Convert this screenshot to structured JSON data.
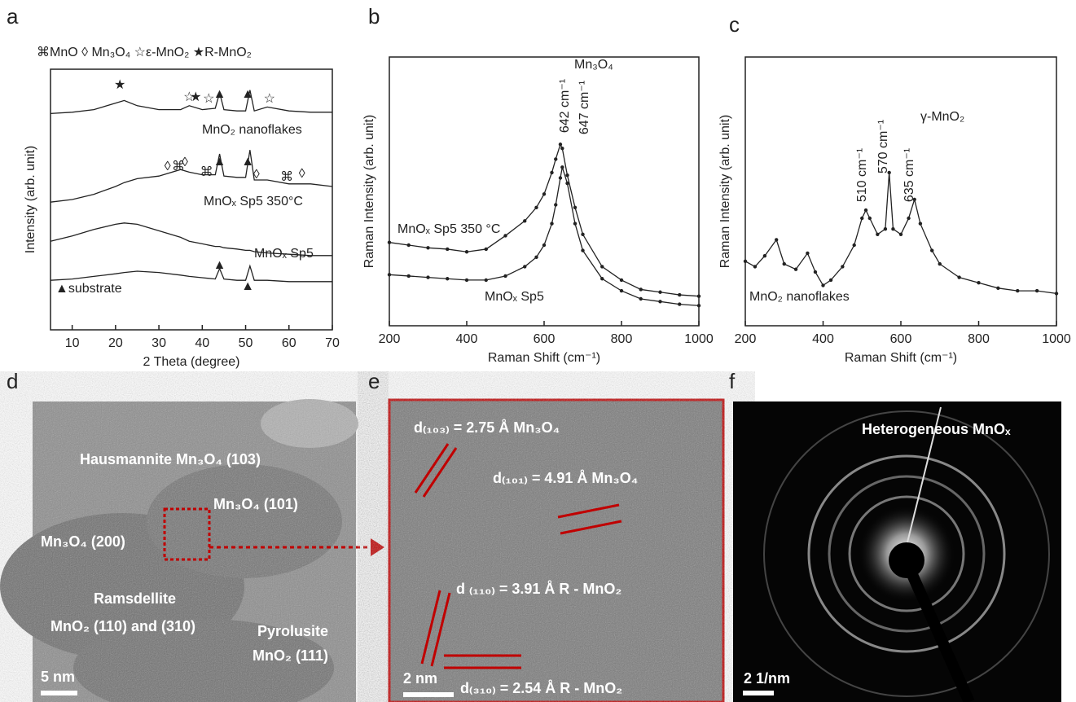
{
  "chart_data": [
    {
      "type": "line",
      "label": "a",
      "xlabel": "2 Theta (degree)",
      "ylabel": "Intensity (arb. unit)",
      "legend_text": "⌘MnO  ◊ Mn₃O₄  ☆ε-MnO₂  ★R-MnO₂",
      "xlim": [
        5,
        70
      ],
      "xticks": [
        10,
        20,
        30,
        40,
        50,
        60,
        70
      ],
      "ylim": [
        0,
        10
      ],
      "markers": false,
      "x": [
        5,
        10,
        15,
        20,
        22,
        25,
        30,
        35,
        37,
        40,
        43,
        44,
        45,
        48,
        50,
        51,
        52,
        55,
        60,
        65,
        70
      ],
      "series": [
        {
          "name": "MnO₂ nanoflakes",
          "color": "#222222",
          "values": [
            8.3,
            8.35,
            8.45,
            8.7,
            8.8,
            8.6,
            8.45,
            8.45,
            8.6,
            8.45,
            8.5,
            9.1,
            8.45,
            8.4,
            8.4,
            9.2,
            8.4,
            8.55,
            8.4,
            8.35,
            8.35
          ]
        },
        {
          "name": "MnOₓ Sp5 350°C",
          "color": "#222222",
          "values": [
            4.9,
            5.0,
            5.2,
            5.5,
            5.65,
            5.8,
            5.9,
            6.15,
            6.05,
            5.95,
            5.95,
            6.75,
            5.9,
            5.85,
            5.85,
            6.9,
            5.75,
            5.75,
            5.6,
            5.6,
            5.5
          ]
        },
        {
          "name": "MnOₓ Sp5",
          "color": "#222222",
          "values": [
            3.4,
            3.6,
            3.85,
            4.05,
            4.1,
            4.05,
            3.8,
            3.55,
            3.4,
            3.3,
            3.2,
            3.2,
            3.15,
            3.1,
            3.05,
            3.05,
            3.0,
            2.95,
            2.9,
            2.85,
            2.85
          ]
        },
        {
          "name": "▲substrate",
          "color": "#222222",
          "values": [
            1.9,
            1.95,
            2.05,
            2.15,
            2.2,
            2.25,
            2.2,
            2.1,
            2.05,
            2.0,
            1.95,
            2.35,
            1.95,
            1.9,
            1.9,
            2.45,
            1.9,
            1.9,
            1.85,
            1.85,
            1.85
          ]
        }
      ],
      "peak_markers": [
        {
          "symbol": "★",
          "x": 21
        },
        {
          "symbol": "☆",
          "x": 37
        },
        {
          "symbol": "★",
          "x": 38.5
        },
        {
          "symbol": "☆",
          "x": 41.5
        },
        {
          "symbol": "▲",
          "x": 44
        },
        {
          "symbol": "▲",
          "x": 50.5
        },
        {
          "symbol": "☆",
          "x": 55.5
        },
        {
          "symbol": "◊",
          "x": 32
        },
        {
          "symbol": "⌘",
          "x": 34.5
        },
        {
          "symbol": "◊",
          "x": 36
        },
        {
          "symbol": "⌘",
          "x": 41
        },
        {
          "symbol": "▲",
          "x": 44
        },
        {
          "symbol": "▲",
          "x": 50.5
        },
        {
          "symbol": "◊",
          "x": 52.5
        },
        {
          "symbol": "⌘",
          "x": 59.5
        },
        {
          "symbol": "◊",
          "x": 63
        },
        {
          "symbol": "▲",
          "x": 44
        },
        {
          "symbol": "▲",
          "x": 50.5
        }
      ]
    },
    {
      "type": "line",
      "label": "b",
      "xlabel": "Raman Shift (cm⁻¹)",
      "ylabel": "Raman Intensity (arb. unit)",
      "xlim": [
        200,
        1000
      ],
      "xticks": [
        200,
        400,
        600,
        800,
        1000
      ],
      "ylim": [
        0,
        10
      ],
      "markers": true,
      "x": [
        200,
        250,
        300,
        350,
        400,
        450,
        500,
        550,
        580,
        600,
        620,
        630,
        642,
        647,
        660,
        680,
        700,
        750,
        800,
        850,
        900,
        950,
        1000
      ],
      "series": [
        {
          "name": "MnOₓ Sp5 350 °C",
          "color": "#222222",
          "values": [
            3.1,
            3.0,
            2.9,
            2.85,
            2.75,
            2.85,
            3.35,
            3.9,
            4.4,
            4.9,
            5.7,
            6.2,
            6.75,
            6.6,
            5.6,
            4.4,
            3.4,
            2.2,
            1.7,
            1.35,
            1.25,
            1.15,
            1.1
          ]
        },
        {
          "name": "MnOₓ Sp5",
          "color": "#222222",
          "values": [
            1.9,
            1.85,
            1.8,
            1.75,
            1.7,
            1.7,
            1.85,
            2.2,
            2.55,
            3.0,
            3.8,
            4.5,
            5.5,
            5.9,
            5.3,
            3.8,
            2.8,
            1.75,
            1.3,
            1.0,
            0.9,
            0.8,
            0.75
          ]
        }
      ],
      "annotations": [
        "Mn₃O₄",
        "642 cm⁻¹",
        "647 cm⁻¹"
      ]
    },
    {
      "type": "line",
      "label": "c",
      "xlabel": "Raman Shift (cm⁻¹)",
      "ylabel": "Raman Intensity (arb. unit)",
      "xlim": [
        200,
        1000
      ],
      "xticks": [
        200,
        400,
        600,
        800,
        1000
      ],
      "ylim": [
        0,
        10
      ],
      "markers": true,
      "x": [
        200,
        225,
        250,
        280,
        300,
        330,
        360,
        380,
        400,
        420,
        450,
        480,
        500,
        510,
        520,
        540,
        560,
        570,
        580,
        600,
        620,
        635,
        650,
        680,
        700,
        750,
        800,
        850,
        900,
        950,
        1000
      ],
      "series": [
        {
          "name": "MnO₂ nanoflakes",
          "color": "#222222",
          "values": [
            2.4,
            2.2,
            2.6,
            3.2,
            2.3,
            2.1,
            2.7,
            2.0,
            1.5,
            1.7,
            2.2,
            3.0,
            4.0,
            4.3,
            4.0,
            3.4,
            3.6,
            5.7,
            3.6,
            3.4,
            4.0,
            4.7,
            3.8,
            2.8,
            2.3,
            1.8,
            1.6,
            1.4,
            1.3,
            1.3,
            1.2
          ]
        }
      ],
      "annotations": [
        "510 cm⁻¹",
        "570 cm⁻¹",
        "635 cm⁻¹",
        "γ-MnO₂"
      ]
    }
  ],
  "panels": [
    {
      "label": "d",
      "texts": [
        "Hausmannite Mn₃O₄ (103)",
        "Mn₃O₄ (101)",
        "Mn₃O₄ (200)",
        "Ramsdellite",
        "MnO₂ (110) and (310)",
        "Pyrolusite",
        "MnO₂ (111)",
        "5 nm"
      ]
    },
    {
      "label": "e",
      "texts": [
        "d₍₁₀₃₎ = 2.75 Å Mn₃O₄",
        "d₍₁₀₁₎ = 4.91 Å Mn₃O₄",
        "d ₍₁₁₀₎ = 3.91 Å R - MnO₂",
        "d₍₃₁₀₎ = 2.54 Å R - MnO₂",
        "2 nm"
      ]
    },
    {
      "label": "f",
      "texts": [
        "Heterogeneous MnOₓ",
        "2 1/nm"
      ]
    }
  ]
}
